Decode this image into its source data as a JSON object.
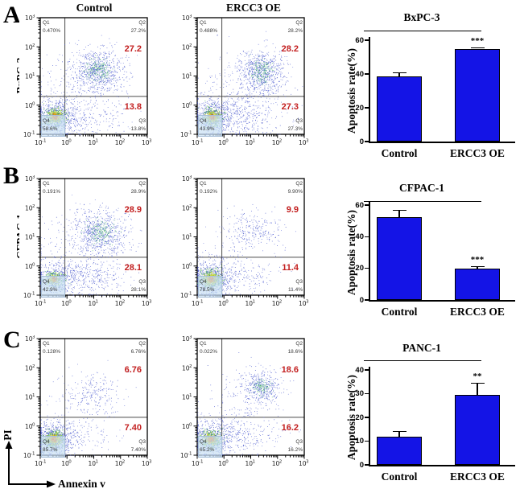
{
  "column_titles": [
    "Control",
    "ERCC3 OE"
  ],
  "panels": [
    {
      "letter": "A",
      "cell_line": "BxPC-3"
    },
    {
      "letter": "B",
      "cell_line": "CFPAC-1"
    },
    {
      "letter": "C",
      "cell_line": "PANC-1"
    }
  ],
  "labels": {
    "q1": "Q1",
    "q2": "Q2",
    "q3": "Q3",
    "q4": "Q4"
  },
  "axis_arrows": {
    "x": "Annexin v",
    "y": "PI"
  },
  "colors": {
    "bar_fill": "#1414e6",
    "annotation_red": "#c32020"
  },
  "chart_data": [
    {
      "type": "scatter",
      "subtype": "flow-cytometry",
      "cell_line": "BxPC-3",
      "condition": "Control",
      "xlabel": "Annexin v",
      "ylabel": "PI",
      "xlim": [
        "1e-1",
        "1e3"
      ],
      "ylim": [
        "1e-1",
        "1e3"
      ],
      "tick_exponents": [
        -1,
        0,
        1,
        2,
        3
      ],
      "gate_x_frac": 0.23,
      "gate_y_frac": 0.675,
      "quadrants": {
        "Q1": "0.470%",
        "Q2": "27.2%",
        "Q3": "13.8%",
        "Q4": "58.6%"
      },
      "annotation_upper": "27.2",
      "annotation_lower": "13.8",
      "seed": 11,
      "clusters": [
        {
          "cx": 0.55,
          "cy": 0.6,
          "sx": 0.3,
          "sy": 0.26,
          "n": 1400,
          "style": "hot"
        },
        {
          "cx": 2.15,
          "cy": 2.2,
          "sx": 0.5,
          "sy": 0.38,
          "n": 900,
          "style": "bluecore"
        },
        {
          "cx": 1.5,
          "cy": 1.3,
          "sx": 0.9,
          "sy": 0.8,
          "n": 260,
          "style": "blue"
        },
        {
          "cx": 1.4,
          "cy": 0.55,
          "sx": 0.75,
          "sy": 0.3,
          "n": 230,
          "style": "blue"
        }
      ]
    },
    {
      "type": "scatter",
      "subtype": "flow-cytometry",
      "cell_line": "BxPC-3",
      "condition": "ERCC3 OE",
      "xlabel": "Annexin v",
      "ylabel": "PI",
      "xlim": [
        "1e-1",
        "1e3"
      ],
      "ylim": [
        "1e-1",
        "1e3"
      ],
      "tick_exponents": [
        -1,
        0,
        1,
        2,
        3
      ],
      "gate_x_frac": 0.23,
      "gate_y_frac": 0.675,
      "quadrants": {
        "Q1": "0.488%",
        "Q2": "28.2%",
        "Q3": "27.3%",
        "Q4": "43.9%"
      },
      "annotation_upper": "28.2",
      "annotation_lower": "27.3",
      "seed": 22,
      "clusters": [
        {
          "cx": 0.55,
          "cy": 0.6,
          "sx": 0.3,
          "sy": 0.26,
          "n": 1300,
          "style": "hot"
        },
        {
          "cx": 2.4,
          "cy": 2.15,
          "sx": 0.45,
          "sy": 0.38,
          "n": 850,
          "style": "bluecore"
        },
        {
          "cx": 1.6,
          "cy": 1.35,
          "sx": 0.9,
          "sy": 0.75,
          "n": 300,
          "style": "blue"
        },
        {
          "cx": 1.5,
          "cy": 0.6,
          "sx": 0.8,
          "sy": 0.32,
          "n": 380,
          "style": "blue"
        }
      ]
    },
    {
      "type": "scatter",
      "subtype": "flow-cytometry",
      "cell_line": "CFPAC-1",
      "condition": "Control",
      "xlabel": "Annexin v",
      "ylabel": "PI",
      "xlim": [
        "1e-1",
        "1e3"
      ],
      "ylim": [
        "1e-1",
        "1e3"
      ],
      "tick_exponents": [
        -1,
        0,
        1,
        2,
        3
      ],
      "gate_x_frac": 0.23,
      "gate_y_frac": 0.675,
      "quadrants": {
        "Q1": "0.191%",
        "Q2": "28.9%",
        "Q3": "28.1%",
        "Q4": "42.9%"
      },
      "annotation_upper": "28.9",
      "annotation_lower": "28.1",
      "seed": 33,
      "clusters": [
        {
          "cx": 0.5,
          "cy": 0.55,
          "sx": 0.28,
          "sy": 0.22,
          "n": 900,
          "style": "hot"
        },
        {
          "cx": 2.25,
          "cy": 2.15,
          "sx": 0.55,
          "sy": 0.42,
          "n": 850,
          "style": "bluecore"
        },
        {
          "cx": 1.6,
          "cy": 1.5,
          "sx": 0.9,
          "sy": 0.7,
          "n": 250,
          "style": "blue"
        },
        {
          "cx": 1.5,
          "cy": 0.6,
          "sx": 0.85,
          "sy": 0.3,
          "n": 420,
          "style": "blue"
        }
      ]
    },
    {
      "type": "scatter",
      "subtype": "flow-cytometry",
      "cell_line": "CFPAC-1",
      "condition": "ERCC3 OE",
      "xlabel": "Annexin v",
      "ylabel": "PI",
      "xlim": [
        "1e-1",
        "1e3"
      ],
      "ylim": [
        "1e-1",
        "1e3"
      ],
      "tick_exponents": [
        -1,
        0,
        1,
        2,
        3
      ],
      "gate_x_frac": 0.23,
      "gate_y_frac": 0.675,
      "quadrants": {
        "Q1": "0.192%",
        "Q2": "9.90%",
        "Q3": "11.4%",
        "Q4": "78.5%"
      },
      "annotation_upper": "9.9",
      "annotation_lower": "11.4",
      "seed": 44,
      "clusters": [
        {
          "cx": 0.5,
          "cy": 0.55,
          "sx": 0.33,
          "sy": 0.26,
          "n": 1700,
          "style": "hot"
        },
        {
          "cx": 2.1,
          "cy": 2.25,
          "sx": 0.55,
          "sy": 0.35,
          "n": 260,
          "style": "blue"
        },
        {
          "cx": 1.4,
          "cy": 0.6,
          "sx": 0.8,
          "sy": 0.3,
          "n": 220,
          "style": "blue"
        },
        {
          "cx": 1.0,
          "cy": 1.2,
          "sx": 0.7,
          "sy": 0.6,
          "n": 90,
          "style": "blue"
        }
      ]
    },
    {
      "type": "scatter",
      "subtype": "flow-cytometry",
      "cell_line": "PANC-1",
      "condition": "Control",
      "xlabel": "Annexin v",
      "ylabel": "PI",
      "xlim": [
        "1e-1",
        "1e3"
      ],
      "ylim": [
        "1e-1",
        "1e3"
      ],
      "tick_exponents": [
        -1,
        0,
        1,
        2,
        3
      ],
      "gate_x_frac": 0.23,
      "gate_y_frac": 0.675,
      "quadrants": {
        "Q1": "0.128%",
        "Q2": "6.76%",
        "Q3": "7.40%",
        "Q4": "85.7%"
      },
      "annotation_upper": "6.76",
      "annotation_lower": "7.40",
      "seed": 55,
      "clusters": [
        {
          "cx": 0.5,
          "cy": 0.55,
          "sx": 0.3,
          "sy": 0.24,
          "n": 1900,
          "style": "hot"
        },
        {
          "cx": 1.95,
          "cy": 2.15,
          "sx": 0.55,
          "sy": 0.35,
          "n": 230,
          "style": "blue"
        },
        {
          "cx": 1.3,
          "cy": 0.6,
          "sx": 0.7,
          "sy": 0.3,
          "n": 140,
          "style": "blue"
        },
        {
          "cx": 1.2,
          "cy": 1.3,
          "sx": 0.7,
          "sy": 0.6,
          "n": 80,
          "style": "blue"
        }
      ]
    },
    {
      "type": "scatter",
      "subtype": "flow-cytometry",
      "cell_line": "PANC-1",
      "condition": "ERCC3 OE",
      "xlabel": "Annexin v",
      "ylabel": "PI",
      "xlim": [
        "1e-1",
        "1e3"
      ],
      "ylim": [
        "1e-1",
        "1e3"
      ],
      "tick_exponents": [
        -1,
        0,
        1,
        2,
        3
      ],
      "gate_x_frac": 0.23,
      "gate_y_frac": 0.675,
      "quadrants": {
        "Q1": "0.022%",
        "Q2": "18.6%",
        "Q3": "16.2%",
        "Q4": "65.2%"
      },
      "annotation_upper": "18.6",
      "annotation_lower": "16.2",
      "seed": 66,
      "clusters": [
        {
          "cx": 0.5,
          "cy": 0.55,
          "sx": 0.32,
          "sy": 0.26,
          "n": 1400,
          "style": "hot"
        },
        {
          "cx": 2.35,
          "cy": 2.35,
          "sx": 0.42,
          "sy": 0.32,
          "n": 520,
          "style": "bluecore"
        },
        {
          "cx": 1.6,
          "cy": 1.4,
          "sx": 0.8,
          "sy": 0.7,
          "n": 200,
          "style": "blue"
        },
        {
          "cx": 1.5,
          "cy": 0.6,
          "sx": 0.8,
          "sy": 0.3,
          "n": 260,
          "style": "blue"
        }
      ]
    },
    {
      "type": "bar",
      "title": "BxPC-3",
      "ylabel": "Apoptosis rate(%)",
      "categories": [
        "Control",
        "ERCC3 OE"
      ],
      "values": [
        38.5,
        55.0
      ],
      "errors": [
        2.6,
        0.8
      ],
      "significance": "***",
      "ylim": [
        0,
        60
      ],
      "yticks": [
        0,
        20,
        40,
        60
      ],
      "bar_color": "#1414e6"
    },
    {
      "type": "bar",
      "title": "CFPAC-1",
      "ylabel": "Apoptosis rate(%)",
      "categories": [
        "Control",
        "ERCC3 OE"
      ],
      "values": [
        52.5,
        20.0
      ],
      "errors": [
        4.5,
        1.5
      ],
      "significance": "***",
      "ylim": [
        0,
        60
      ],
      "yticks": [
        0,
        20,
        40,
        60
      ],
      "bar_color": "#1414e6"
    },
    {
      "type": "bar",
      "title": "PANC-1",
      "ylabel": "Apoptosis rate(%)",
      "categories": [
        "Control",
        "ERCC3 OE"
      ],
      "values": [
        12.0,
        29.5
      ],
      "errors": [
        2.3,
        5.2
      ],
      "significance": "**",
      "ylim": [
        0,
        40
      ],
      "yticks": [
        0,
        10,
        20,
        30,
        40
      ],
      "bar_color": "#1414e6"
    }
  ]
}
